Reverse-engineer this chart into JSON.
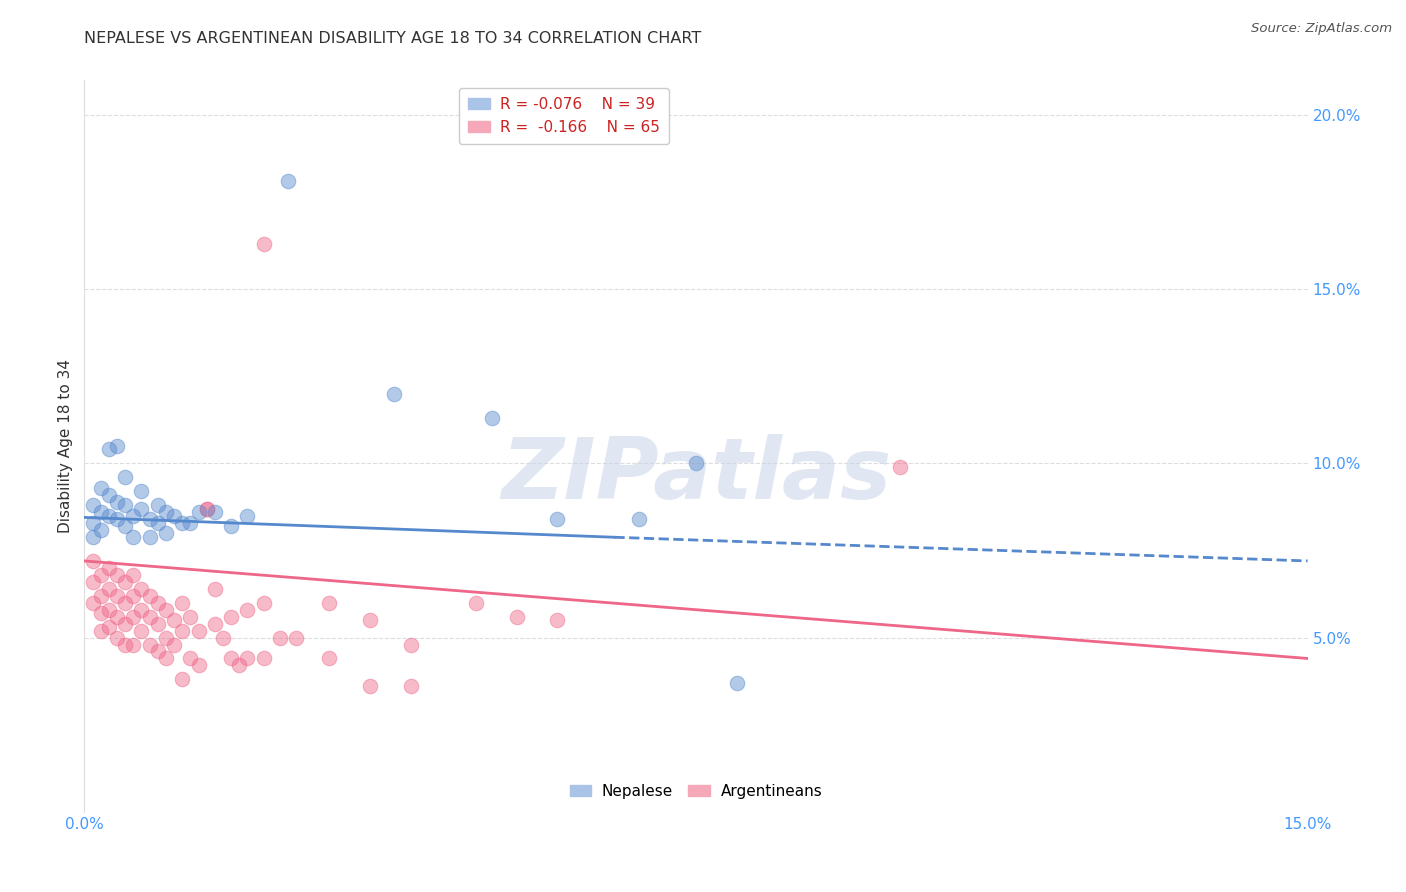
{
  "title": "NEPALESE VS ARGENTINEAN DISABILITY AGE 18 TO 34 CORRELATION CHART",
  "source": "Source: ZipAtlas.com",
  "ylabel": "Disability Age 18 to 34",
  "xlim": [
    0.0,
    0.15
  ],
  "ylim": [
    0.0,
    0.21
  ],
  "blue_scatter": [
    [
      0.001,
      0.088
    ],
    [
      0.001,
      0.083
    ],
    [
      0.002,
      0.093
    ],
    [
      0.002,
      0.086
    ],
    [
      0.003,
      0.091
    ],
    [
      0.003,
      0.085
    ],
    [
      0.004,
      0.089
    ],
    [
      0.004,
      0.084
    ],
    [
      0.005,
      0.088
    ],
    [
      0.005,
      0.082
    ],
    [
      0.005,
      0.096
    ],
    [
      0.006,
      0.085
    ],
    [
      0.006,
      0.079
    ],
    [
      0.007,
      0.087
    ],
    [
      0.007,
      0.092
    ],
    [
      0.008,
      0.084
    ],
    [
      0.008,
      0.079
    ],
    [
      0.009,
      0.088
    ],
    [
      0.01,
      0.086
    ],
    [
      0.01,
      0.08
    ],
    [
      0.011,
      0.085
    ],
    [
      0.012,
      0.083
    ],
    [
      0.013,
      0.083
    ],
    [
      0.014,
      0.086
    ],
    [
      0.016,
      0.086
    ],
    [
      0.018,
      0.082
    ],
    [
      0.025,
      0.181
    ],
    [
      0.038,
      0.12
    ],
    [
      0.05,
      0.113
    ],
    [
      0.058,
      0.084
    ],
    [
      0.068,
      0.084
    ],
    [
      0.075,
      0.1
    ],
    [
      0.08,
      0.037
    ],
    [
      0.003,
      0.104
    ],
    [
      0.004,
      0.105
    ],
    [
      0.001,
      0.079
    ],
    [
      0.002,
      0.081
    ],
    [
      0.009,
      0.083
    ],
    [
      0.02,
      0.085
    ]
  ],
  "pink_scatter": [
    [
      0.001,
      0.072
    ],
    [
      0.001,
      0.066
    ],
    [
      0.001,
      0.06
    ],
    [
      0.002,
      0.068
    ],
    [
      0.002,
      0.062
    ],
    [
      0.002,
      0.057
    ],
    [
      0.002,
      0.052
    ],
    [
      0.003,
      0.07
    ],
    [
      0.003,
      0.064
    ],
    [
      0.003,
      0.058
    ],
    [
      0.003,
      0.053
    ],
    [
      0.004,
      0.068
    ],
    [
      0.004,
      0.062
    ],
    [
      0.004,
      0.056
    ],
    [
      0.004,
      0.05
    ],
    [
      0.005,
      0.066
    ],
    [
      0.005,
      0.06
    ],
    [
      0.005,
      0.054
    ],
    [
      0.005,
      0.048
    ],
    [
      0.006,
      0.068
    ],
    [
      0.006,
      0.062
    ],
    [
      0.006,
      0.056
    ],
    [
      0.006,
      0.048
    ],
    [
      0.007,
      0.064
    ],
    [
      0.007,
      0.058
    ],
    [
      0.007,
      0.052
    ],
    [
      0.008,
      0.062
    ],
    [
      0.008,
      0.056
    ],
    [
      0.008,
      0.048
    ],
    [
      0.009,
      0.06
    ],
    [
      0.009,
      0.054
    ],
    [
      0.009,
      0.046
    ],
    [
      0.01,
      0.058
    ],
    [
      0.01,
      0.05
    ],
    [
      0.01,
      0.044
    ],
    [
      0.011,
      0.055
    ],
    [
      0.011,
      0.048
    ],
    [
      0.012,
      0.06
    ],
    [
      0.012,
      0.052
    ],
    [
      0.012,
      0.038
    ],
    [
      0.013,
      0.056
    ],
    [
      0.013,
      0.044
    ],
    [
      0.014,
      0.052
    ],
    [
      0.014,
      0.042
    ],
    [
      0.015,
      0.087
    ],
    [
      0.015,
      0.087
    ],
    [
      0.016,
      0.064
    ],
    [
      0.016,
      0.054
    ],
    [
      0.017,
      0.05
    ],
    [
      0.018,
      0.056
    ],
    [
      0.018,
      0.044
    ],
    [
      0.019,
      0.042
    ],
    [
      0.02,
      0.058
    ],
    [
      0.02,
      0.044
    ],
    [
      0.022,
      0.06
    ],
    [
      0.022,
      0.044
    ],
    [
      0.024,
      0.05
    ],
    [
      0.026,
      0.05
    ],
    [
      0.03,
      0.06
    ],
    [
      0.03,
      0.044
    ],
    [
      0.035,
      0.055
    ],
    [
      0.035,
      0.036
    ],
    [
      0.04,
      0.048
    ],
    [
      0.04,
      0.036
    ],
    [
      0.048,
      0.06
    ],
    [
      0.053,
      0.056
    ],
    [
      0.058,
      0.055
    ],
    [
      0.022,
      0.163
    ],
    [
      0.1,
      0.099
    ]
  ],
  "blue_line_solid": {
    "x0": 0.0,
    "y0": 0.0845,
    "x1": 0.065,
    "y1": 0.0788
  },
  "blue_line_dash": {
    "x0": 0.065,
    "y0": 0.0788,
    "x1": 0.15,
    "y1": 0.072
  },
  "pink_line": {
    "x0": 0.0,
    "y0": 0.072,
    "x1": 0.15,
    "y1": 0.044
  },
  "blue_color": "#5588cc",
  "pink_color": "#ee6688",
  "bg_color": "#ffffff",
  "axis_color": "#4499ff",
  "grid_color": "#dddddd",
  "title_fontsize": 11.5,
  "source_fontsize": 9.5
}
